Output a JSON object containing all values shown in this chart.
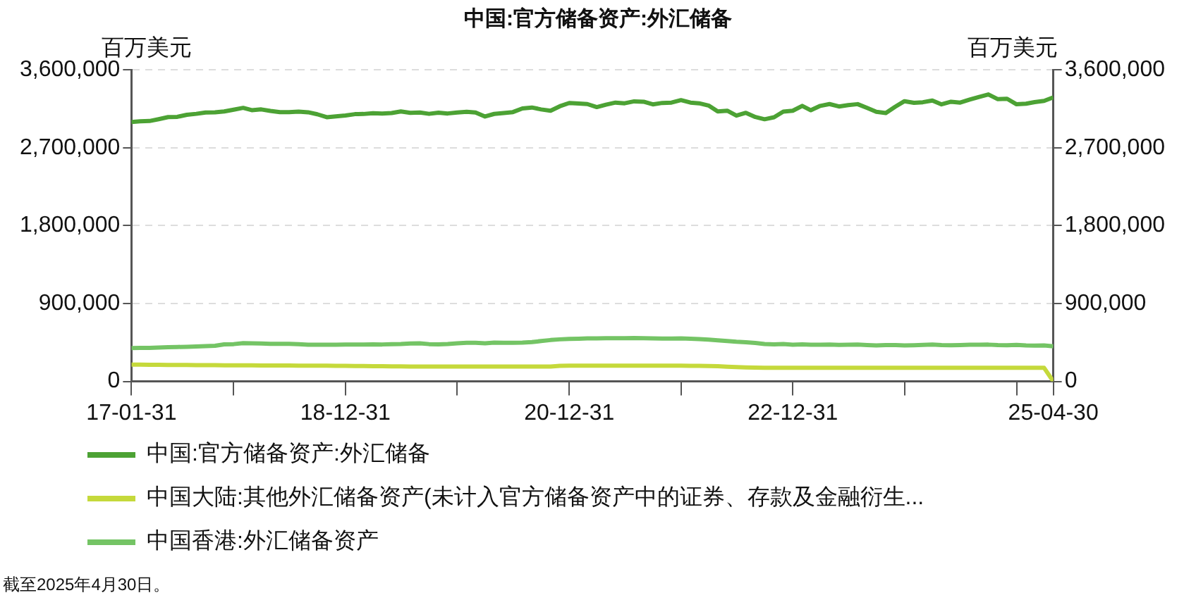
{
  "chart_data": {
    "type": "line",
    "title": "中国:官方储备资产:外汇储备",
    "ylabel": "百万美元",
    "y2label": "百万美元",
    "annotations": [
      "截至2025年4月30日。"
    ],
    "x": [
      "2017-01-31",
      "2017-02-28",
      "2017-03-31",
      "2017-04-30",
      "2017-05-31",
      "2017-06-30",
      "2017-07-31",
      "2017-08-31",
      "2017-09-30",
      "2017-10-31",
      "2017-11-30",
      "2017-12-31",
      "2018-01-31",
      "2018-02-28",
      "2018-03-31",
      "2018-04-30",
      "2018-05-31",
      "2018-06-30",
      "2018-07-31",
      "2018-08-31",
      "2018-09-30",
      "2018-10-31",
      "2018-11-30",
      "2018-12-31",
      "2019-01-31",
      "2019-02-28",
      "2019-03-31",
      "2019-04-30",
      "2019-05-31",
      "2019-06-30",
      "2019-07-31",
      "2019-08-31",
      "2019-09-30",
      "2019-10-31",
      "2019-11-30",
      "2019-12-31",
      "2020-01-31",
      "2020-02-29",
      "2020-03-31",
      "2020-04-30",
      "2020-05-31",
      "2020-06-30",
      "2020-07-31",
      "2020-08-31",
      "2020-09-30",
      "2020-10-31",
      "2020-11-30",
      "2020-12-31",
      "2021-01-31",
      "2021-02-28",
      "2021-03-31",
      "2021-04-30",
      "2021-05-31",
      "2021-06-30",
      "2021-07-31",
      "2021-08-31",
      "2021-09-30",
      "2021-10-31",
      "2021-11-30",
      "2021-12-31",
      "2022-01-31",
      "2022-02-28",
      "2022-03-31",
      "2022-04-30",
      "2022-05-31",
      "2022-06-30",
      "2022-07-31",
      "2022-08-31",
      "2022-09-30",
      "2022-10-31",
      "2022-11-30",
      "2022-12-31",
      "2023-01-31",
      "2023-02-28",
      "2023-03-31",
      "2023-04-30",
      "2023-05-31",
      "2023-06-30",
      "2023-07-31",
      "2023-08-31",
      "2023-09-30",
      "2023-10-31",
      "2023-11-30",
      "2023-12-31",
      "2024-01-31",
      "2024-02-29",
      "2024-03-31",
      "2024-04-30",
      "2024-05-31",
      "2024-06-30",
      "2024-07-31",
      "2024-08-31",
      "2024-09-30",
      "2024-10-31",
      "2024-11-30",
      "2024-12-31",
      "2025-01-31",
      "2025-02-28",
      "2025-03-31",
      "2025-04-30"
    ],
    "xlim": [
      "2017-01-31",
      "2025-04-30"
    ],
    "xticks": [
      {
        "value": "2017-01-31",
        "label": "17-01-31"
      },
      {
        "value": "2017-12-31",
        "label": null
      },
      {
        "value": "2018-12-31",
        "label": "18-12-31"
      },
      {
        "value": "2019-12-31",
        "label": null
      },
      {
        "value": "2020-12-31",
        "label": "20-12-31"
      },
      {
        "value": "2021-12-31",
        "label": null
      },
      {
        "value": "2022-12-31",
        "label": "22-12-31"
      },
      {
        "value": "2023-12-31",
        "label": null
      },
      {
        "value": "2024-12-31",
        "label": null
      },
      {
        "value": "2025-04-30",
        "label": "25-04-30"
      }
    ],
    "ylim": [
      0,
      3600000
    ],
    "yticks": [
      {
        "value": 0,
        "label": "0"
      },
      {
        "value": 900000,
        "label": "900,000"
      },
      {
        "value": 1800000,
        "label": "1,800,000"
      },
      {
        "value": 2700000,
        "label": "2,700,000"
      },
      {
        "value": 3600000,
        "label": "3,600,000"
      }
    ],
    "y2lim": [
      0,
      3600000
    ],
    "y2ticks": [
      {
        "value": 0,
        "label": "0"
      },
      {
        "value": 900000,
        "label": "900,000"
      },
      {
        "value": 1800000,
        "label": "1,800,000"
      },
      {
        "value": 2700000,
        "label": "2,700,000"
      },
      {
        "value": 3600000,
        "label": "3,600,000"
      }
    ],
    "grid": "y",
    "legend": "bottom left",
    "marker": "none",
    "line_style": "solid",
    "series": [
      {
        "name": "中国:官方储备资产:外汇储备",
        "color": "#4ca234",
        "values": [
          2998000,
          3005000,
          3009000,
          3030000,
          3054000,
          3057000,
          3081000,
          3092000,
          3108000,
          3109000,
          3119000,
          3140000,
          3161000,
          3134000,
          3143000,
          3125000,
          3111000,
          3112000,
          3118000,
          3110000,
          3087000,
          3053000,
          3062000,
          3073000,
          3088000,
          3090000,
          3099000,
          3095000,
          3101000,
          3119000,
          3104000,
          3107000,
          3092000,
          3105000,
          3096000,
          3108000,
          3116000,
          3107000,
          3061000,
          3091000,
          3102000,
          3112000,
          3154000,
          3165000,
          3143000,
          3128000,
          3179000,
          3217000,
          3211000,
          3205000,
          3170000,
          3198000,
          3222000,
          3214000,
          3236000,
          3232000,
          3201000,
          3218000,
          3222000,
          3250000,
          3222000,
          3214000,
          3188000,
          3120000,
          3128000,
          3071000,
          3104000,
          3055000,
          3029000,
          3052000,
          3117000,
          3128000,
          3184000,
          3133000,
          3184000,
          3205000,
          3177000,
          3193000,
          3204000,
          3160000,
          3115000,
          3101000,
          3172000,
          3238000,
          3219000,
          3226000,
          3246000,
          3201000,
          3232000,
          3222000,
          3256000,
          3288000,
          3316000,
          3261000,
          3266000,
          3202000,
          3209000,
          3227000,
          3241000,
          3282000
        ]
      },
      {
        "name": "中国大陆:其他外汇储备资产(未计入官方储备资产中的证券、存款及金融衍生...",
        "color": "#c5d93b",
        "values": [
          195000,
          194000,
          193000,
          192000,
          191000,
          190000,
          189000,
          188000,
          188000,
          187000,
          186000,
          186000,
          185000,
          185000,
          184000,
          184000,
          183000,
          183000,
          182000,
          182000,
          181000,
          181000,
          180000,
          180000,
          178000,
          177000,
          176000,
          175000,
          174000,
          173000,
          172000,
          172000,
          172000,
          172000,
          172000,
          172000,
          172000,
          172000,
          172000,
          172000,
          172000,
          172000,
          172000,
          172000,
          172000,
          172000,
          180000,
          181000,
          181000,
          181000,
          181000,
          181000,
          181000,
          181000,
          181000,
          181000,
          181000,
          181000,
          181000,
          181000,
          180000,
          180000,
          178000,
          176000,
          170000,
          165000,
          162000,
          160000,
          158000,
          157000,
          157000,
          157000,
          157000,
          157000,
          157000,
          157000,
          157000,
          157000,
          157000,
          157000,
          157000,
          157000,
          157000,
          157000,
          157000,
          157000,
          157000,
          157000,
          157000,
          157000,
          157000,
          157000,
          157000,
          157000,
          157000,
          157000,
          157000,
          157000,
          157000,
          0
        ]
      },
      {
        "name": "中国香港:外汇储备资产",
        "color": "#74c465",
        "values": [
          386000,
          387000,
          388000,
          392000,
          395000,
          398000,
          400000,
          404000,
          408000,
          412000,
          428000,
          431000,
          442000,
          440000,
          438000,
          435000,
          434000,
          434000,
          430000,
          424000,
          424000,
          423000,
          424000,
          425000,
          425000,
          426000,
          428000,
          427000,
          430000,
          433000,
          439000,
          440000,
          431000,
          428000,
          433000,
          441000,
          447000,
          446000,
          441000,
          448000,
          446000,
          447000,
          448000,
          455000,
          466000,
          478000,
          486000,
          492000,
          494000,
          497000,
          498000,
          499000,
          499000,
          499000,
          501000,
          500000,
          497000,
          496000,
          496000,
          497000,
          494000,
          490000,
          483000,
          474000,
          466000,
          458000,
          453000,
          444000,
          432000,
          428000,
          432000,
          424000,
          428000,
          423000,
          424000,
          425000,
          421000,
          423000,
          426000,
          420000,
          415000,
          419000,
          420000,
          416000,
          418000,
          422000,
          426000,
          420000,
          417000,
          420000,
          423000,
          424000,
          425000,
          420000,
          418000,
          421000,
          415000,
          414000,
          415000,
          405000
        ]
      }
    ]
  }
}
